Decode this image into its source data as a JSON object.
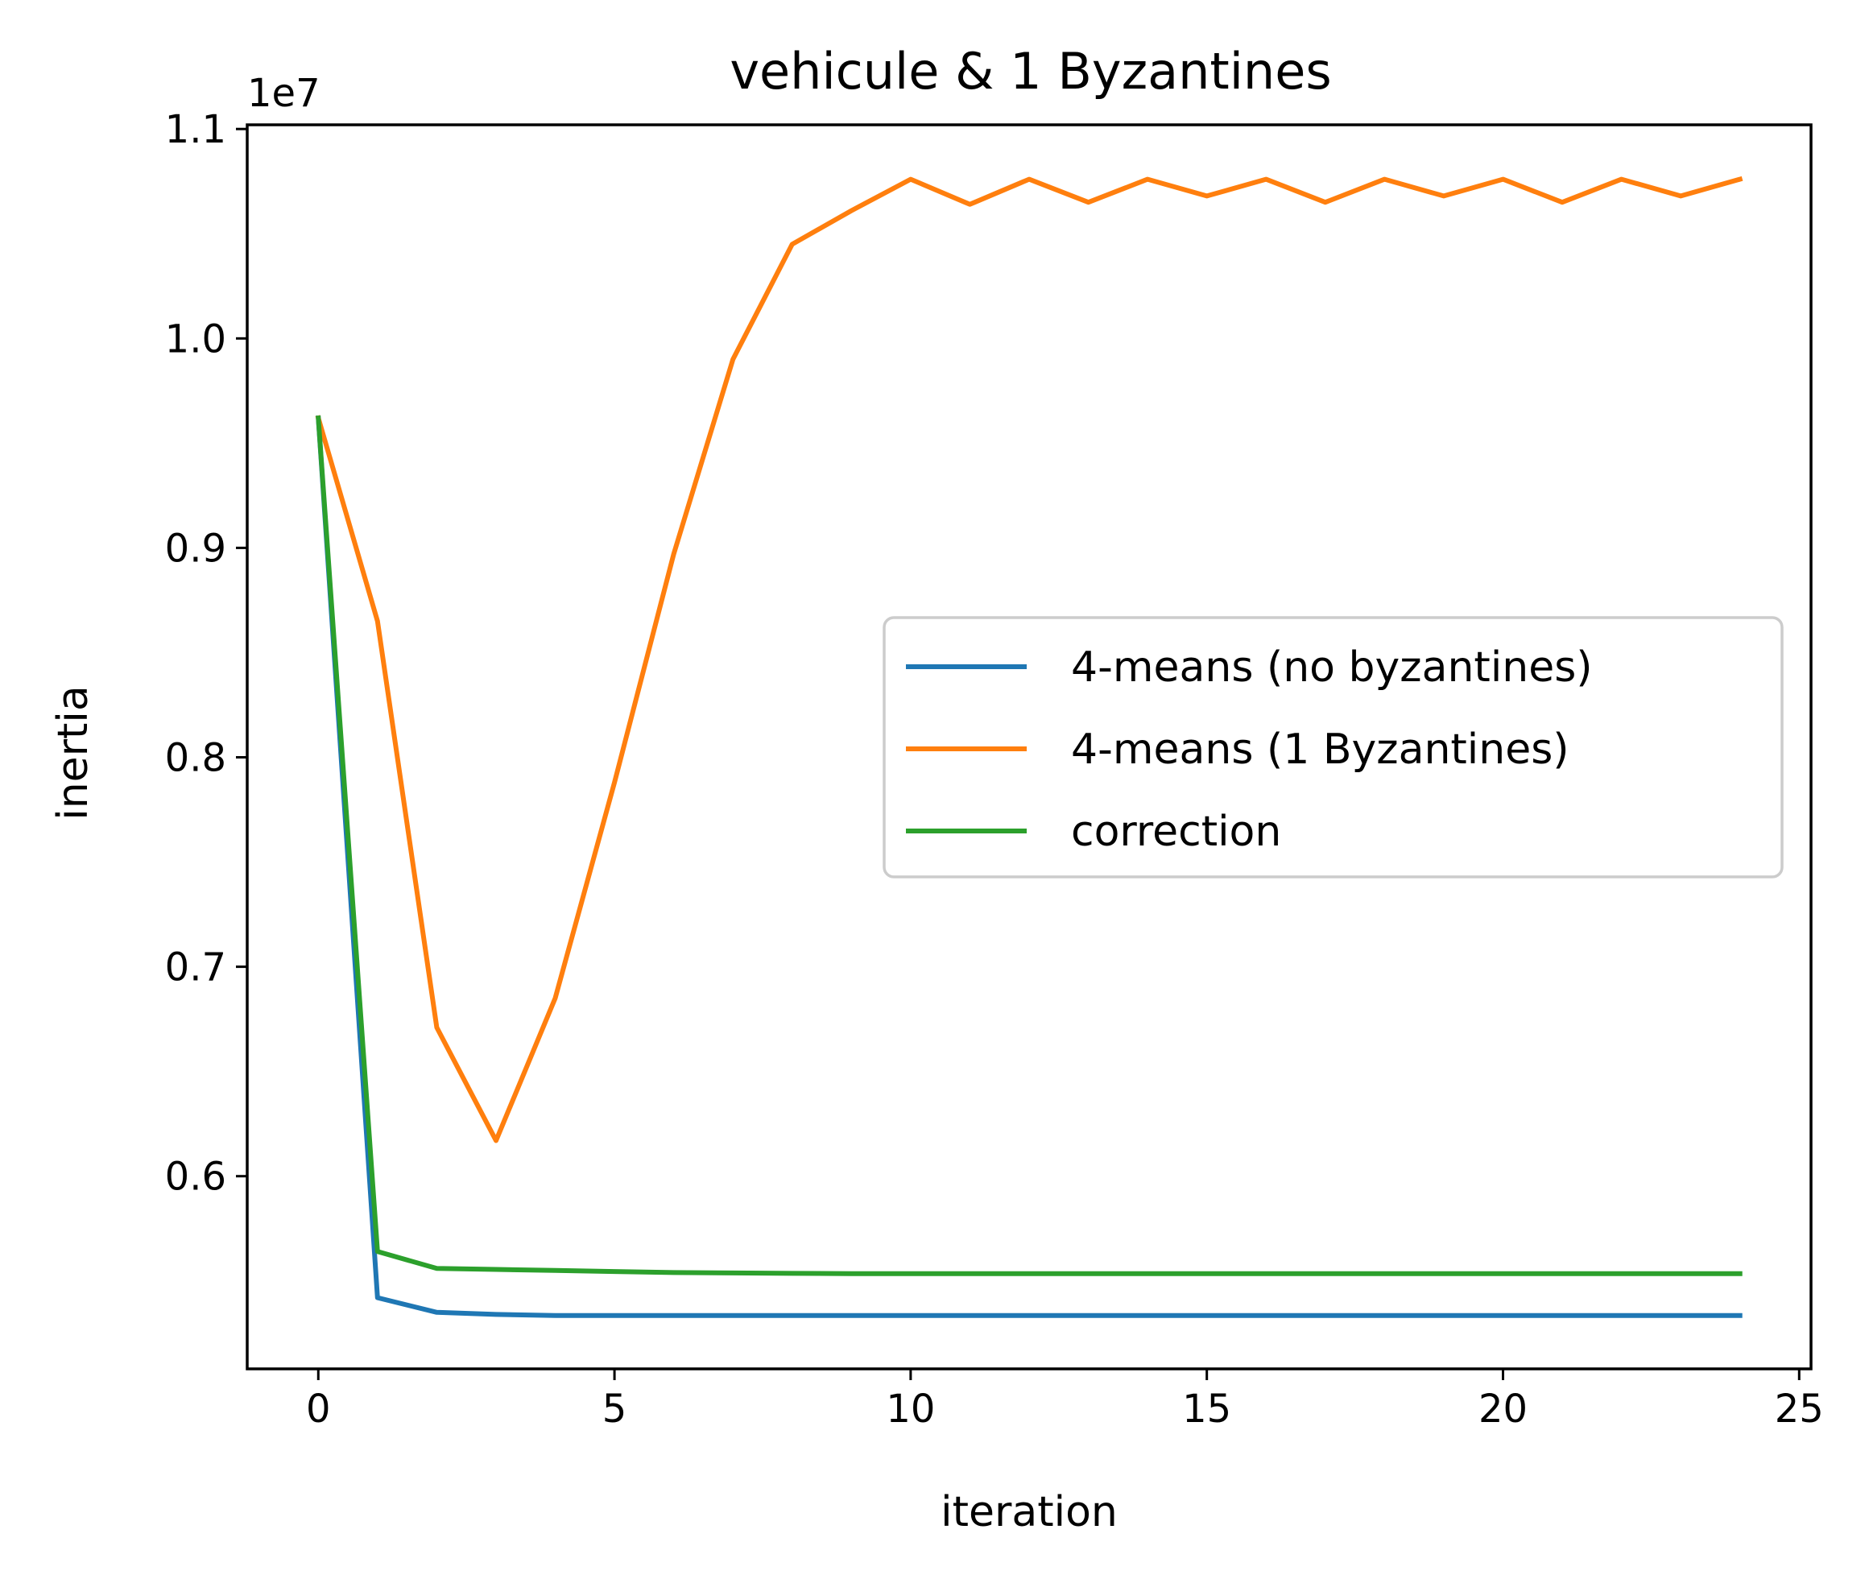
{
  "chart_data": {
    "type": "line",
    "title": "vehicule & 1 Byzantines",
    "xlabel": "iteration",
    "ylabel": "inertia",
    "y_offset_label": "1e7",
    "xlim": [
      -1.2,
      25.2
    ],
    "ylim": [
      5.08,
      11.02
    ],
    "xticks": [
      0,
      5,
      10,
      15,
      20,
      25
    ],
    "xtick_labels": [
      "0",
      "5",
      "10",
      "15",
      "20",
      "25"
    ],
    "yticks": [
      6.0,
      7.0,
      8.0,
      9.0,
      10.0,
      11.0
    ],
    "ytick_labels": [
      "0.6",
      "0.7",
      "0.8",
      "0.9",
      "1.0",
      "1.1"
    ],
    "y_unit": "1e6",
    "grid": false,
    "legend_position": "center-right",
    "x": [
      0,
      1,
      2,
      3,
      4,
      5,
      6,
      7,
      8,
      9,
      10,
      11,
      12,
      13,
      14,
      15,
      16,
      17,
      18,
      19,
      20,
      21,
      22,
      23,
      24
    ],
    "series": [
      {
        "name": "4-means (no byzantines)",
        "color": "#1f77b4",
        "values": [
          9.62,
          5.42,
          5.35,
          5.34,
          5.335,
          5.335,
          5.335,
          5.335,
          5.335,
          5.335,
          5.335,
          5.335,
          5.335,
          5.335,
          5.335,
          5.335,
          5.335,
          5.335,
          5.335,
          5.335,
          5.335,
          5.335,
          5.335,
          5.335,
          5.335
        ]
      },
      {
        "name": "4-means (1 Byzantines)",
        "color": "#ff7f0e",
        "values": [
          9.62,
          8.65,
          6.71,
          6.17,
          6.85,
          7.88,
          8.97,
          9.9,
          10.45,
          10.61,
          10.76,
          10.64,
          10.76,
          10.65,
          10.76,
          10.68,
          10.76,
          10.65,
          10.76,
          10.68,
          10.76,
          10.65,
          10.76,
          10.68,
          10.76
        ]
      },
      {
        "name": "correction",
        "color": "#2ca02c",
        "values": [
          9.62,
          5.64,
          5.56,
          5.555,
          5.55,
          5.545,
          5.54,
          5.538,
          5.536,
          5.535,
          5.535,
          5.535,
          5.535,
          5.535,
          5.535,
          5.535,
          5.535,
          5.535,
          5.535,
          5.535,
          5.535,
          5.535,
          5.535,
          5.535,
          5.535
        ]
      }
    ]
  }
}
